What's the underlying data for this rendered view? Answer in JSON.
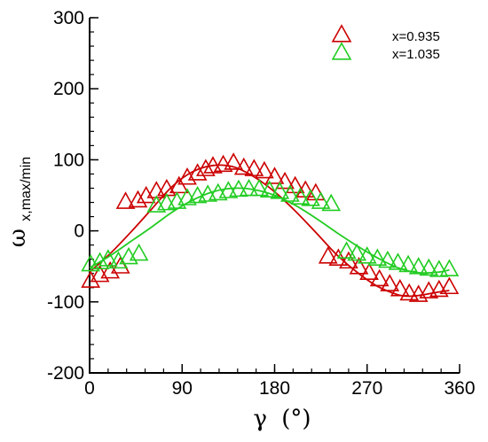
{
  "chart_data": {
    "type": "scatter",
    "xlabel": {
      "symbol": "γ",
      "unit": "(°)"
    },
    "ylabel": {
      "symbol": "ω",
      "subscript": "x,max/min"
    },
    "xlim": [
      0,
      360
    ],
    "ylim": [
      -200,
      300
    ],
    "x_ticks": [
      "0",
      "90",
      "180",
      "270",
      "360"
    ],
    "y_ticks": [
      "-200",
      "-100",
      "0",
      "100",
      "200",
      "300"
    ],
    "x_minor_step": 18,
    "y_minor_step": 20,
    "grid": false,
    "legend_position": "top-right",
    "series": [
      {
        "name": "x=0.935",
        "color": "#cc0000",
        "marker": "open-triangle",
        "points": [
          [
            1,
            -71
          ],
          [
            10,
            -63
          ],
          [
            20,
            -58
          ],
          [
            30,
            -51
          ],
          [
            35,
            40
          ],
          [
            47,
            42
          ],
          [
            55,
            48
          ],
          [
            65,
            55
          ],
          [
            75,
            58
          ],
          [
            87,
            62
          ],
          [
            95,
            74
          ],
          [
            105,
            80
          ],
          [
            113,
            86
          ],
          [
            120,
            90
          ],
          [
            130,
            92
          ],
          [
            140,
            95
          ],
          [
            150,
            88
          ],
          [
            160,
            86
          ],
          [
            170,
            83
          ],
          [
            180,
            75
          ],
          [
            190,
            68
          ],
          [
            200,
            62
          ],
          [
            210,
            56
          ],
          [
            220,
            52
          ],
          [
            232,
            -37
          ],
          [
            242,
            -40
          ],
          [
            252,
            -44
          ],
          [
            262,
            -52
          ],
          [
            272,
            -60
          ],
          [
            282,
            -69
          ],
          [
            292,
            -76
          ],
          [
            302,
            -83
          ],
          [
            311,
            -89
          ],
          [
            320,
            -91
          ],
          [
            330,
            -86
          ],
          [
            340,
            -84
          ],
          [
            350,
            -80
          ]
        ],
        "fit": [
          [
            0,
            -58
          ],
          [
            20,
            -32
          ],
          [
            40,
            -2
          ],
          [
            60,
            30
          ],
          [
            80,
            62
          ],
          [
            100,
            83
          ],
          [
            120,
            92
          ],
          [
            140,
            90
          ],
          [
            160,
            76
          ],
          [
            180,
            55
          ],
          [
            200,
            28
          ],
          [
            220,
            -2
          ],
          [
            240,
            -33
          ],
          [
            260,
            -58
          ],
          [
            280,
            -78
          ],
          [
            300,
            -90
          ],
          [
            310,
            -92
          ],
          [
            320,
            -91
          ],
          [
            340,
            -86
          ],
          [
            350,
            -84
          ]
        ]
      },
      {
        "name": "x=1.035",
        "color": "#22cc22",
        "marker": "open-triangle",
        "points": [
          [
            1,
            -48
          ],
          [
            10,
            -45
          ],
          [
            18,
            -41
          ],
          [
            28,
            -44
          ],
          [
            38,
            -38
          ],
          [
            48,
            -33
          ],
          [
            65,
            35
          ],
          [
            75,
            38
          ],
          [
            85,
            40
          ],
          [
            95,
            45
          ],
          [
            105,
            48
          ],
          [
            115,
            50
          ],
          [
            125,
            52
          ],
          [
            135,
            55
          ],
          [
            145,
            57
          ],
          [
            155,
            58
          ],
          [
            165,
            58
          ],
          [
            175,
            56
          ],
          [
            185,
            54
          ],
          [
            195,
            50
          ],
          [
            205,
            46
          ],
          [
            215,
            44
          ],
          [
            225,
            40
          ],
          [
            235,
            37
          ],
          [
            250,
            -30
          ],
          [
            260,
            -33
          ],
          [
            270,
            -37
          ],
          [
            280,
            -40
          ],
          [
            290,
            -43
          ],
          [
            300,
            -46
          ],
          [
            310,
            -49
          ],
          [
            320,
            -52
          ],
          [
            330,
            -54
          ],
          [
            340,
            -56
          ],
          [
            350,
            -55
          ]
        ],
        "fit": [
          [
            0,
            -52
          ],
          [
            20,
            -35
          ],
          [
            40,
            -15
          ],
          [
            60,
            5
          ],
          [
            80,
            26
          ],
          [
            100,
            43
          ],
          [
            120,
            55
          ],
          [
            140,
            60
          ],
          [
            160,
            58
          ],
          [
            180,
            50
          ],
          [
            200,
            36
          ],
          [
            220,
            18
          ],
          [
            240,
            -2
          ],
          [
            260,
            -21
          ],
          [
            280,
            -38
          ],
          [
            300,
            -52
          ],
          [
            320,
            -59
          ],
          [
            340,
            -58
          ],
          [
            350,
            -55
          ]
        ]
      }
    ]
  }
}
